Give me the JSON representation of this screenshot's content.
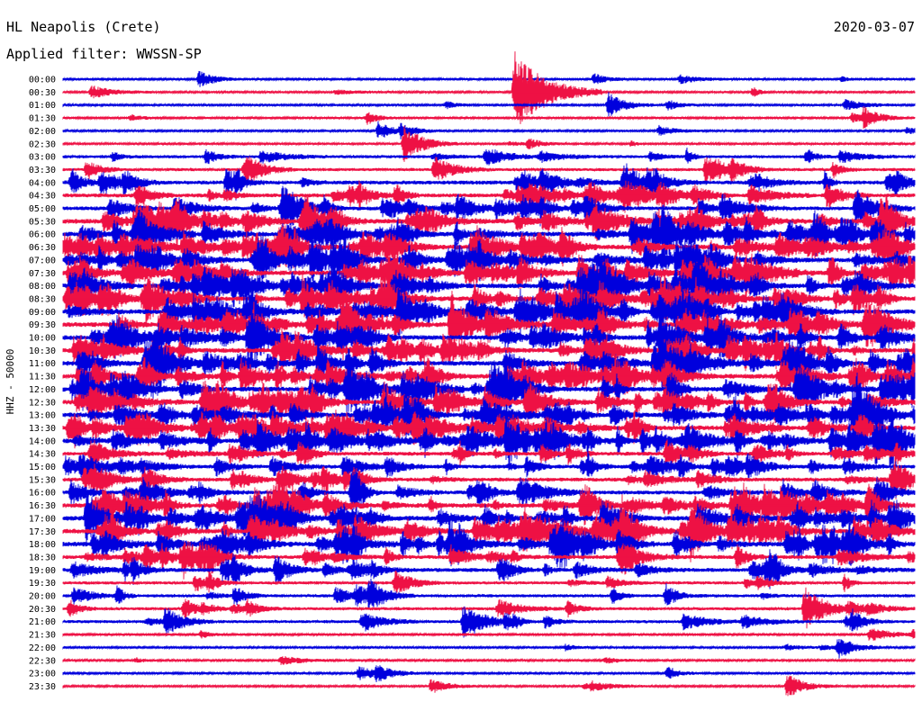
{
  "header": {
    "station": "HL Neapolis (Crete)",
    "date": "2020-03-07",
    "filter": "Applied filter: WWSSN-SP"
  },
  "chart_data": {
    "type": "line",
    "title": "HL Neapolis (Crete)",
    "subtitle": "Applied filter: WWSSN-SP",
    "date": "2020-03-07",
    "ylabel": "HHZ - 50000",
    "xlabel": "",
    "rows": [
      "00:00",
      "00:30",
      "01:00",
      "01:30",
      "02:00",
      "02:30",
      "03:00",
      "03:30",
      "04:00",
      "04:30",
      "05:00",
      "05:30",
      "06:00",
      "06:30",
      "07:00",
      "07:30",
      "08:00",
      "08:30",
      "09:00",
      "09:30",
      "10:00",
      "10:30",
      "11:00",
      "11:30",
      "12:00",
      "12:30",
      "13:00",
      "13:30",
      "14:00",
      "14:30",
      "15:00",
      "15:30",
      "16:00",
      "16:30",
      "17:00",
      "17:30",
      "18:00",
      "18:30",
      "19:00",
      "19:30",
      "20:00",
      "20:30",
      "21:00",
      "21:30",
      "22:00",
      "22:30",
      "23:00",
      "23:30"
    ],
    "colors": [
      "#0000dd",
      "#ee1144"
    ],
    "row_activity": [
      1,
      1,
      1,
      1,
      1,
      1,
      2,
      2,
      3,
      3,
      3,
      4,
      4,
      4,
      4,
      4,
      4,
      4,
      4,
      4,
      4,
      4,
      4,
      4,
      4,
      4,
      4,
      4,
      4,
      3,
      3,
      3,
      3,
      4,
      4,
      4,
      4,
      3,
      3,
      2,
      2,
      2,
      2,
      1,
      1,
      1,
      1,
      1
    ],
    "events": [
      {
        "row": 0,
        "x": 0.16,
        "amp": 10
      },
      {
        "row": 1,
        "x": 0.53,
        "amp": 45
      },
      {
        "row": 2,
        "x": 0.64,
        "amp": 14
      },
      {
        "row": 3,
        "x": 0.94,
        "amp": 10
      },
      {
        "row": 4,
        "x": 0.37,
        "amp": 10
      },
      {
        "row": 5,
        "x": 0.4,
        "amp": 20
      },
      {
        "row": 10,
        "x": 0.93,
        "amp": 22
      },
      {
        "row": 14,
        "x": 0.72,
        "amp": 20
      },
      {
        "row": 16,
        "x": 0.74,
        "amp": 24
      },
      {
        "row": 28,
        "x": 0.52,
        "amp": 28
      },
      {
        "row": 34,
        "x": 0.97,
        "amp": 18
      },
      {
        "row": 38,
        "x": 0.25,
        "amp": 12
      },
      {
        "row": 40,
        "x": 0.36,
        "amp": 14
      },
      {
        "row": 41,
        "x": 0.87,
        "amp": 24
      },
      {
        "row": 42,
        "x": 0.12,
        "amp": 16
      },
      {
        "row": 42,
        "x": 0.47,
        "amp": 18
      },
      {
        "row": 44,
        "x": 0.91,
        "amp": 12
      },
      {
        "row": 47,
        "x": 0.85,
        "amp": 14
      }
    ]
  }
}
